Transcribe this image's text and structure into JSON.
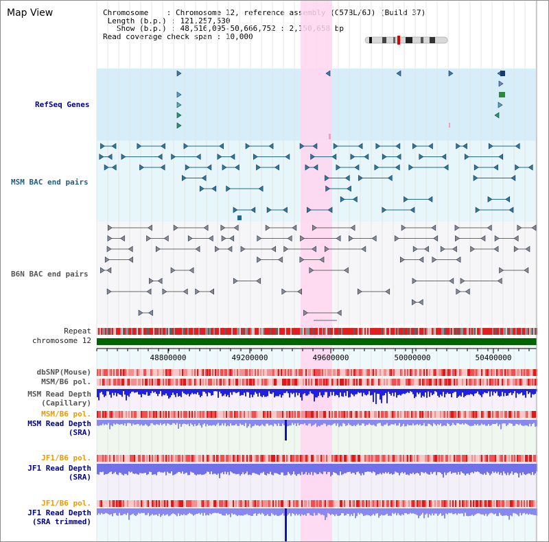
{
  "title": "Map View",
  "info": {
    "chromosome_key": "Chromosome",
    "chromosome_val": "Chromosome 12, reference assembly (C57BL/6J) (Build 37)",
    "length_key": "Length (b.p.)",
    "length_val": "121,257,530",
    "show_key": "Show (b.p.)",
    "show_val": "48,516,095-50,666,752 : 2,150,658 bp",
    "coverage_key": "Read coverage check span",
    "coverage_val": "10,000"
  },
  "tracks": {
    "refseq": "RefSeq Genes",
    "msm_bac": "MSM BAC end pairs",
    "b6n_bac": "B6N BAC end pairs",
    "repeat": "Repeat",
    "chromosome": "chromosome 12",
    "dbsnp": "dbSNP(Mouse)",
    "msm_b6_pol": "MSM/B6 pol.",
    "msm_read_depth_cap_1": "MSM Read Depth",
    "msm_read_depth_cap_2": "(Capillary)",
    "msm_b6_pol_2": "MSM/B6 pol.",
    "msm_read_depth_sra_1": "MSM Read Depth",
    "msm_read_depth_sra_2": "(SRA)",
    "jf1_b6_pol": "JF1/B6 pol.",
    "jf1_read_depth_sra_1": "JF1 Read Depth",
    "jf1_read_depth_sra_2": "(SRA)",
    "jf1_b6_pol_2": "JF1/B6 pol.",
    "jf1_read_depth_trim_1": "JF1 Read Depth",
    "jf1_read_depth_trim_2": "(SRA trimmed)"
  },
  "axis": {
    "ticks": [
      "48800000",
      "49200000",
      "49600000",
      "50000000",
      "50400000"
    ]
  },
  "colors": {
    "highlight": "#ffd6f0",
    "refseq_bg": "#d6eefa",
    "msm_bac_bg": "#e6f6fa",
    "b6n_bac_bg": "#f6f6f8",
    "chromosome": "#006400",
    "depth_blue": "#2020e0",
    "depth_light": "#8080f0"
  }
}
